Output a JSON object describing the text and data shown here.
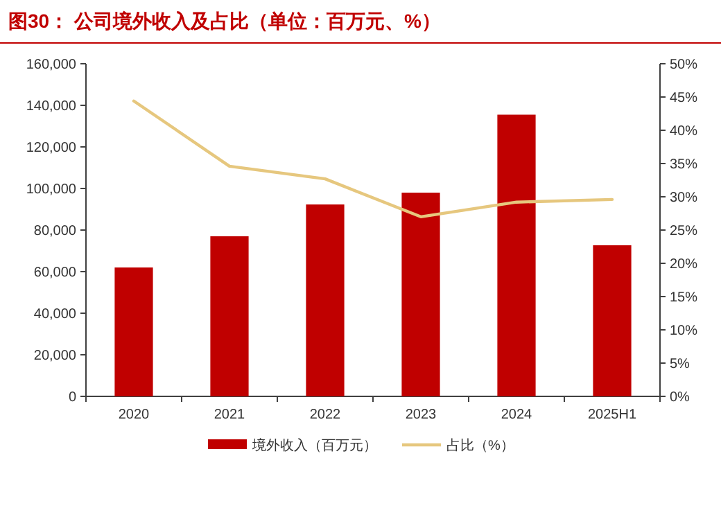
{
  "chart_data": {
    "type": "bar",
    "title": "图30：  公司境外收入及占比（单位：百万元、%）",
    "categories": [
      "2020",
      "2021",
      "2022",
      "2023",
      "2024",
      "2025H1"
    ],
    "series": [
      {
        "name": "境外收入（百万元）",
        "color": "#c00000",
        "values": [
          62000,
          77000,
          92300,
          98000,
          135500,
          72700
        ]
      },
      {
        "name": "占比（%）",
        "type": "line",
        "axis": "y2",
        "color": "#e6c77e",
        "values": [
          44.4,
          34.6,
          32.7,
          27.0,
          29.2,
          29.6
        ]
      }
    ],
    "ylim": [
      0,
      160000
    ],
    "yticks": [
      0,
      {
        "value": 20000,
        "label": "20,000"
      },
      {
        "value": 40000,
        "label": "40,000"
      },
      {
        "value": 60000,
        "label": "60,000"
      },
      {
        "value": 80000,
        "label": "80,000"
      },
      {
        "value": 100000,
        "label": "100,000"
      },
      {
        "value": 120000,
        "label": "120,000"
      },
      {
        "value": 140000,
        "label": "140,000"
      },
      {
        "value": 160000,
        "label": "160,000"
      }
    ],
    "y2lim": [
      0,
      50
    ],
    "y2ticks": [
      {
        "value": 0,
        "label": "0%"
      },
      {
        "value": 5,
        "label": "5%"
      },
      {
        "value": 10,
        "label": "10%"
      },
      {
        "value": 15,
        "label": "15%"
      },
      {
        "value": 20,
        "label": "20%"
      },
      {
        "value": 25,
        "label": "25%"
      },
      {
        "value": 30,
        "label": "30%"
      },
      {
        "value": 35,
        "label": "35%"
      },
      {
        "value": 40,
        "label": "40%"
      },
      {
        "value": 45,
        "label": "45%"
      },
      {
        "value": 50,
        "label": "50%"
      }
    ],
    "legend": "bottom",
    "grid": false
  }
}
